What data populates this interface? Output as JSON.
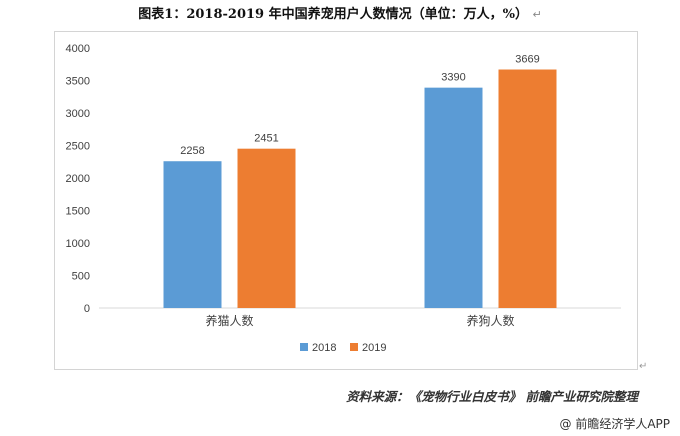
{
  "title": "图表1：2018-2019 年中国养宠用户人数情况（单位：万人，%）",
  "paragraph_mark": "↵",
  "source": "资料来源：《宠物行业白皮书》 前瞻产业研究院整理",
  "watermark": "@ 前瞻经济学人APP",
  "colors": {
    "s2018": "#5b9bd5",
    "s2019": "#ed7d31",
    "axis": "#d9d9d9",
    "text": "#404040"
  },
  "chart_data": {
    "type": "bar",
    "categories": [
      "养猫人数",
      "养狗人数"
    ],
    "series": [
      {
        "name": "2018",
        "values": [
          2258,
          3390
        ]
      },
      {
        "name": "2019",
        "values": [
          2451,
          3669
        ]
      }
    ],
    "ylim": [
      0,
      4000
    ],
    "yticks": [
      "0",
      "500",
      "1000",
      "1500",
      "2000",
      "2500",
      "3000",
      "3500",
      "4000"
    ],
    "grid": false,
    "legend": "bottom"
  }
}
